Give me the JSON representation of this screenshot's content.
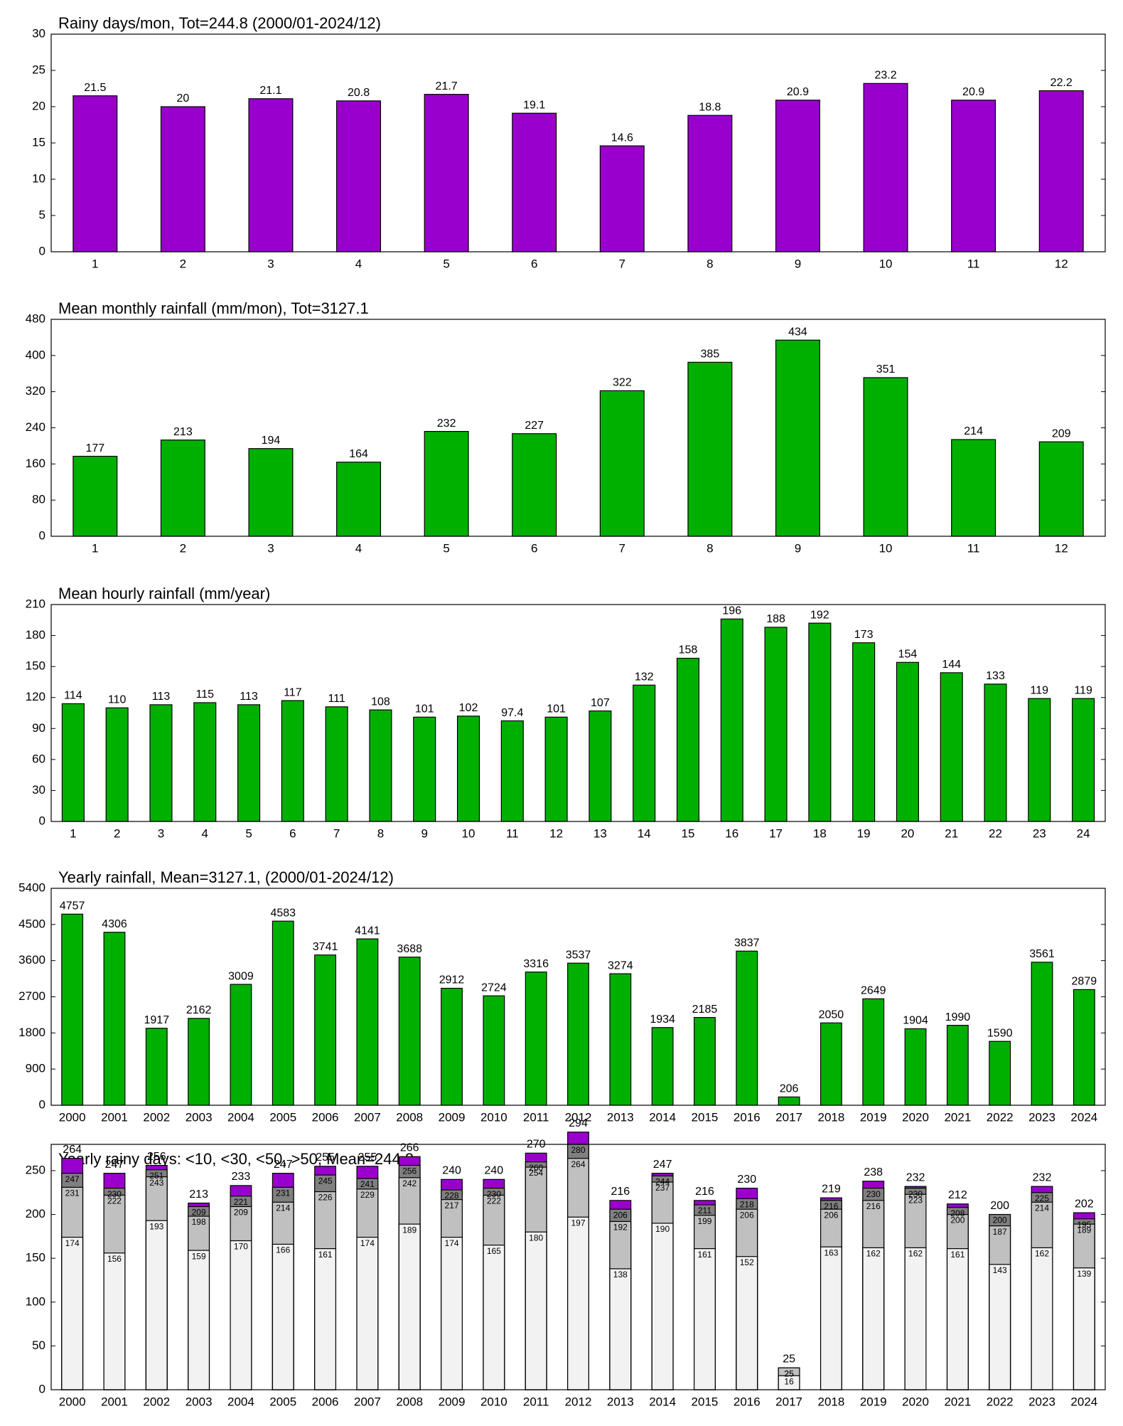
{
  "chart_data": [
    {
      "type": "bar",
      "title": "Rainy days/mon, Tot=244.8 (2000/01-2024/12)",
      "categories": [
        "1",
        "2",
        "3",
        "4",
        "5",
        "6",
        "7",
        "8",
        "9",
        "10",
        "11",
        "12"
      ],
      "values": [
        21.5,
        20,
        21.1,
        20.8,
        21.7,
        19.1,
        14.6,
        18.8,
        20.9,
        23.2,
        20.9,
        22.2
      ],
      "color": "#9900cc",
      "ylim": [
        0,
        30
      ],
      "yticks": [
        0,
        5,
        10,
        15,
        20,
        25,
        30
      ]
    },
    {
      "type": "bar",
      "title": "Mean monthly rainfall (mm/mon), Tot=3127.1",
      "categories": [
        "1",
        "2",
        "3",
        "4",
        "5",
        "6",
        "7",
        "8",
        "9",
        "10",
        "11",
        "12"
      ],
      "values": [
        177,
        213,
        194,
        164,
        232,
        227,
        322,
        385,
        434,
        351,
        214,
        209
      ],
      "color": "#00b000",
      "ylim": [
        0,
        480
      ],
      "yticks": [
        0,
        80,
        160,
        240,
        320,
        400,
        480
      ]
    },
    {
      "type": "bar",
      "title": "Mean hourly rainfall (mm/year)",
      "categories": [
        "1",
        "2",
        "3",
        "4",
        "5",
        "6",
        "7",
        "8",
        "9",
        "10",
        "11",
        "12",
        "13",
        "14",
        "15",
        "16",
        "17",
        "18",
        "19",
        "20",
        "21",
        "22",
        "23",
        "24"
      ],
      "values": [
        114,
        110,
        113,
        115,
        113,
        117,
        111,
        108,
        101,
        102,
        97.4,
        101,
        107,
        132,
        158,
        196,
        188,
        192,
        173,
        154,
        144,
        133,
        119,
        119
      ],
      "color": "#00b000",
      "ylim": [
        0,
        210
      ],
      "yticks": [
        0,
        30,
        60,
        90,
        120,
        150,
        180,
        210
      ]
    },
    {
      "type": "bar",
      "title": "Yearly rainfall, Mean=3127.1, (2000/01-2024/12)",
      "categories": [
        "2000",
        "2001",
        "2002",
        "2003",
        "2004",
        "2005",
        "2006",
        "2007",
        "2008",
        "2009",
        "2010",
        "2011",
        "2012",
        "2013",
        "2014",
        "2015",
        "2016",
        "2017",
        "2018",
        "2019",
        "2020",
        "2021",
        "2022",
        "2023",
        "2024"
      ],
      "values": [
        4757,
        4306,
        1917,
        2162,
        3009,
        4583,
        3741,
        4141,
        3688,
        2912,
        2724,
        3316,
        3537,
        3274,
        1934,
        2185,
        3837,
        206,
        2050,
        2649,
        1904,
        1990,
        1590,
        3561,
        2879
      ],
      "color": "#00b000",
      "ylim": [
        0,
        5400
      ],
      "yticks": [
        0,
        900,
        1800,
        2700,
        3600,
        4500,
        5400
      ]
    },
    {
      "type": "overlapping-bar",
      "title": "Yearly rainy days: <10, <30, <50, >50, Mean=244.8",
      "categories": [
        "2000",
        "2001",
        "2002",
        "2003",
        "2004",
        "2005",
        "2006",
        "2007",
        "2008",
        "2009",
        "2010",
        "2011",
        "2012",
        "2013",
        "2014",
        "2015",
        "2016",
        "2017",
        "2018",
        "2019",
        "2020",
        "2021",
        "2022",
        "2023",
        "2024"
      ],
      "series": [
        {
          "color": "#f2f2f2",
          "values": [
            174,
            156,
            193,
            159,
            170,
            166,
            161,
            174,
            189,
            174,
            165,
            180,
            197,
            138,
            190,
            161,
            152,
            16,
            163,
            162,
            162,
            161,
            143,
            162,
            139
          ]
        },
        {
          "color": "#c0c0c0",
          "values": [
            231,
            222,
            243,
            198,
            209,
            214,
            226,
            229,
            242,
            217,
            222,
            254,
            264,
            192,
            237,
            199,
            206,
            25,
            206,
            216,
            223,
            200,
            187,
            214,
            189
          ]
        },
        {
          "color": "#808080",
          "values": [
            247,
            230,
            251,
            209,
            221,
            231,
            245,
            241,
            256,
            228,
            230,
            260,
            280,
            206,
            244,
            211,
            218,
            25,
            216,
            230,
            230,
            208,
            200,
            225,
            195
          ]
        },
        {
          "color": "#9900cc",
          "values": [
            264,
            247,
            256,
            213,
            233,
            247,
            255,
            255,
            266,
            240,
            240,
            270,
            294,
            216,
            247,
            216,
            230,
            25,
            219,
            238,
            232,
            212,
            200,
            232,
            202
          ]
        }
      ],
      "ylim": [
        0,
        280
      ],
      "yticks": [
        0,
        50,
        100,
        150,
        200,
        250
      ]
    }
  ]
}
